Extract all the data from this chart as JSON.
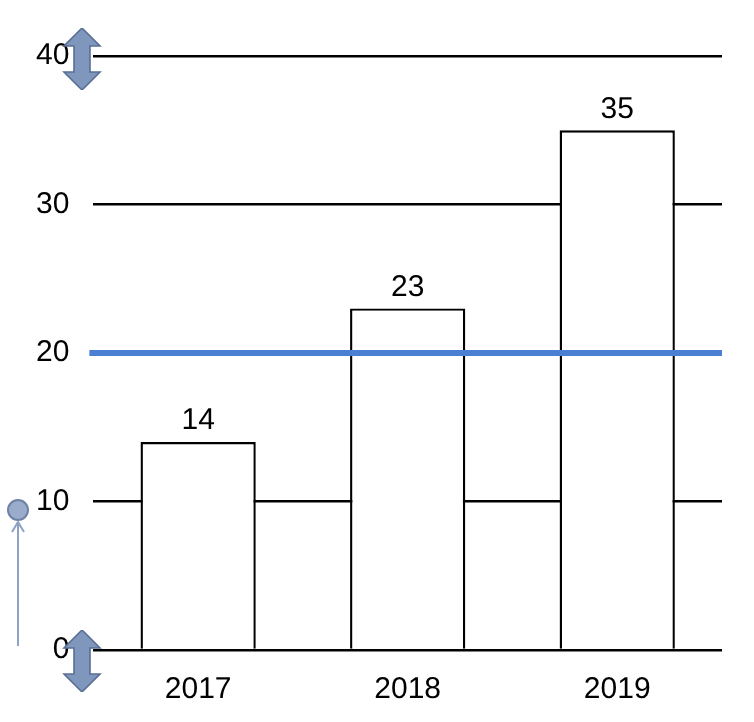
{
  "chart_data": {
    "type": "bar",
    "categories": [
      "2017",
      "2018",
      "2019"
    ],
    "values": [
      14,
      23,
      35
    ],
    "color": "#ffffff",
    "ylim": [
      0,
      40
    ],
    "yticks": [
      0,
      10,
      20,
      30,
      40
    ],
    "grid": "y",
    "legend": false,
    "data_labels": true,
    "ref_lines": [
      {
        "axis": "y",
        "value": 20,
        "color": "#4a7fd4"
      }
    ]
  }
}
